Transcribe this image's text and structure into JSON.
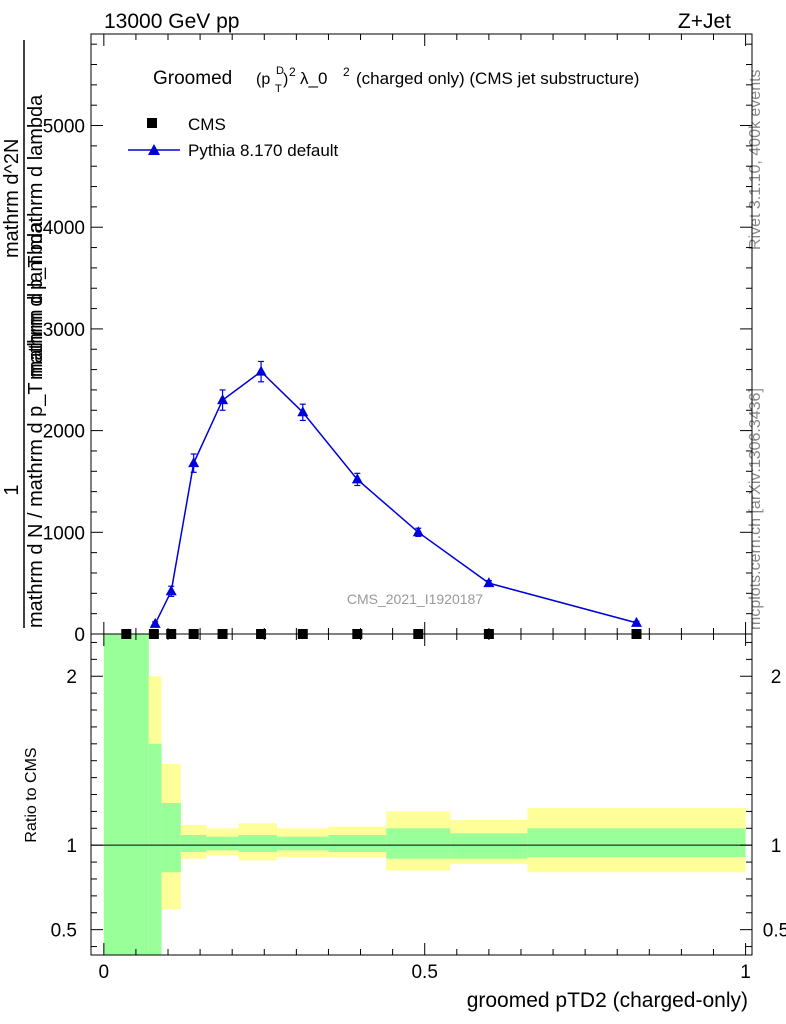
{
  "header": {
    "left": "13000 GeV pp",
    "right": "Z+Jet"
  },
  "side": {
    "rivet": "Rivet 3.1.10,  400k events",
    "mcplots": "mcplots.cern.ch [arXiv:1306.3436]"
  },
  "title": {
    "prefix": "Groomed",
    "mid": "λ_0",
    "suffix": "(charged only) (CMS jet substructure)"
  },
  "legend": {
    "cms": "CMS",
    "pythia": "Pythia 8.170 default"
  },
  "watermark": "CMS_2021_I1920187",
  "ylabel": {
    "one": "1",
    "denominator": "mathrm d N / mathrm d p_T mathrm d lambda",
    "numerator": "mathrm d^2N",
    "numerator_tail": "mathrm d p_T mathrm d lambda"
  },
  "ratio_ylabel": "Ratio to CMS",
  "xlabel": "groomed pTD2 (charged-only)",
  "colors": {
    "mc": "#0000dd",
    "band_inner": "#99ff99",
    "band_outer": "#ffff99"
  },
  "chart_data": {
    "type": "line",
    "xlim": [
      -0.02,
      1.01
    ],
    "main_ylim": [
      0,
      5900
    ],
    "main_yticks": [
      0,
      1000,
      2000,
      3000,
      4000,
      5000
    ],
    "main_ytick_labels": [
      "0",
      "1000",
      "2000",
      "3000",
      "4000",
      "5000"
    ],
    "ratio_ylim": [
      0.35,
      2.25
    ],
    "ratio_yticks": [
      0.5,
      1,
      2
    ],
    "ratio_ytick_labels": [
      "0.5",
      "1",
      "2"
    ],
    "xticks": [
      0,
      0.5,
      1
    ],
    "xtick_labels": [
      "0",
      "0.5",
      "1"
    ],
    "series": [
      {
        "name": "CMS",
        "x": [
          0.035,
          0.078,
          0.105,
          0.14,
          0.185,
          0.245,
          0.31,
          0.395,
          0.49,
          0.6,
          0.83
        ],
        "y": [
          0,
          0,
          0,
          0,
          0,
          0,
          0,
          0,
          0,
          0,
          0
        ]
      },
      {
        "name": "Pythia 8.170 default",
        "x": [
          0.08,
          0.105,
          0.14,
          0.185,
          0.245,
          0.31,
          0.395,
          0.49,
          0.6,
          0.83
        ],
        "y": [
          100,
          420,
          1680,
          2300,
          2580,
          2180,
          1520,
          1000,
          500,
          110
        ],
        "err": [
          20,
          50,
          90,
          100,
          100,
          80,
          60,
          40,
          25,
          15
        ]
      }
    ],
    "ratio_bands": [
      {
        "x0": 0.0,
        "x1": 0.07,
        "inner": [
          0.3,
          2.25
        ],
        "outer": [
          0.3,
          2.25
        ]
      },
      {
        "x0": 0.07,
        "x1": 0.09,
        "inner": [
          0.35,
          1.6
        ],
        "outer": [
          0.3,
          2.0
        ]
      },
      {
        "x0": 0.09,
        "x1": 0.12,
        "inner": [
          0.84,
          1.25
        ],
        "outer": [
          0.62,
          1.48
        ]
      },
      {
        "x0": 0.12,
        "x1": 0.16,
        "inner": [
          0.96,
          1.06
        ],
        "outer": [
          0.92,
          1.12
        ]
      },
      {
        "x0": 0.16,
        "x1": 0.21,
        "inner": [
          0.97,
          1.05
        ],
        "outer": [
          0.94,
          1.1
        ]
      },
      {
        "x0": 0.21,
        "x1": 0.27,
        "inner": [
          0.96,
          1.06
        ],
        "outer": [
          0.91,
          1.13
        ]
      },
      {
        "x0": 0.27,
        "x1": 0.35,
        "inner": [
          0.97,
          1.05
        ],
        "outer": [
          0.93,
          1.1
        ]
      },
      {
        "x0": 0.35,
        "x1": 0.44,
        "inner": [
          0.96,
          1.06
        ],
        "outer": [
          0.93,
          1.11
        ]
      },
      {
        "x0": 0.44,
        "x1": 0.54,
        "inner": [
          0.92,
          1.1
        ],
        "outer": [
          0.85,
          1.2
        ]
      },
      {
        "x0": 0.54,
        "x1": 0.66,
        "inner": [
          0.92,
          1.07
        ],
        "outer": [
          0.89,
          1.15
        ]
      },
      {
        "x0": 0.66,
        "x1": 1.0,
        "inner": [
          0.93,
          1.1
        ],
        "outer": [
          0.84,
          1.22
        ]
      }
    ]
  }
}
